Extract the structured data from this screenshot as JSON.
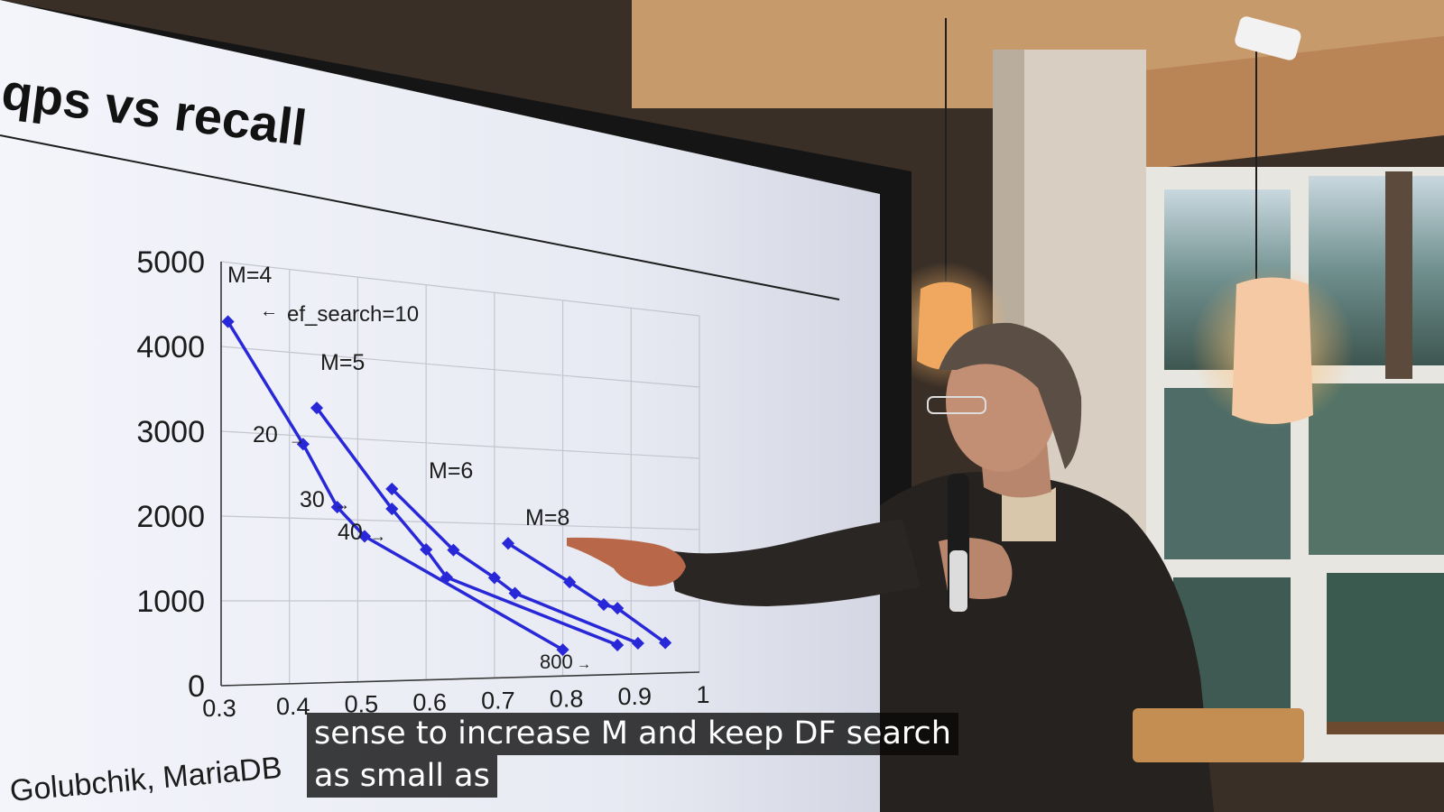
{
  "slide": {
    "title": "qps vs recall",
    "footer": "Golubchik, MariaDB"
  },
  "chart_data": {
    "type": "line",
    "title": "qps vs recall",
    "xlabel": "",
    "ylabel": "",
    "xlim": [
      0.3,
      1
    ],
    "ylim": [
      0,
      5000
    ],
    "x_ticks": [
      "0.3",
      "0.4",
      "0.5",
      "0.6",
      "0.7",
      "0.8",
      "0.9",
      "1"
    ],
    "y_ticks": [
      "0",
      "1000",
      "2000",
      "3000",
      "4000",
      "5000"
    ],
    "grid": true,
    "series": [
      {
        "name": "M=4",
        "points": [
          [
            0.31,
            4300
          ],
          [
            0.42,
            2900
          ],
          [
            0.47,
            2150
          ],
          [
            0.51,
            1800
          ],
          [
            0.8,
            350
          ]
        ]
      },
      {
        "name": "M=5",
        "points": [
          [
            0.44,
            3350
          ],
          [
            0.55,
            2150
          ],
          [
            0.6,
            1650
          ],
          [
            0.63,
            1300
          ],
          [
            0.88,
            400
          ]
        ]
      },
      {
        "name": "M=6",
        "points": [
          [
            0.55,
            2400
          ],
          [
            0.64,
            1650
          ],
          [
            0.7,
            1300
          ],
          [
            0.73,
            1100
          ],
          [
            0.91,
            420
          ]
        ]
      },
      {
        "name": "M=8",
        "points": [
          [
            0.72,
            1750
          ],
          [
            0.81,
            1250
          ],
          [
            0.86,
            950
          ],
          [
            0.88,
            900
          ],
          [
            0.95,
            420
          ]
        ]
      }
    ],
    "annotations": [
      "ef_search=10",
      "20",
      "30",
      "40",
      "800"
    ]
  },
  "captions": {
    "line1": "sense to increase M and keep DF search",
    "line2": "as small as"
  },
  "colors": {
    "series": "#2828d8",
    "screen": "#eef0f6",
    "caption_bg": "#0a0a0a"
  }
}
